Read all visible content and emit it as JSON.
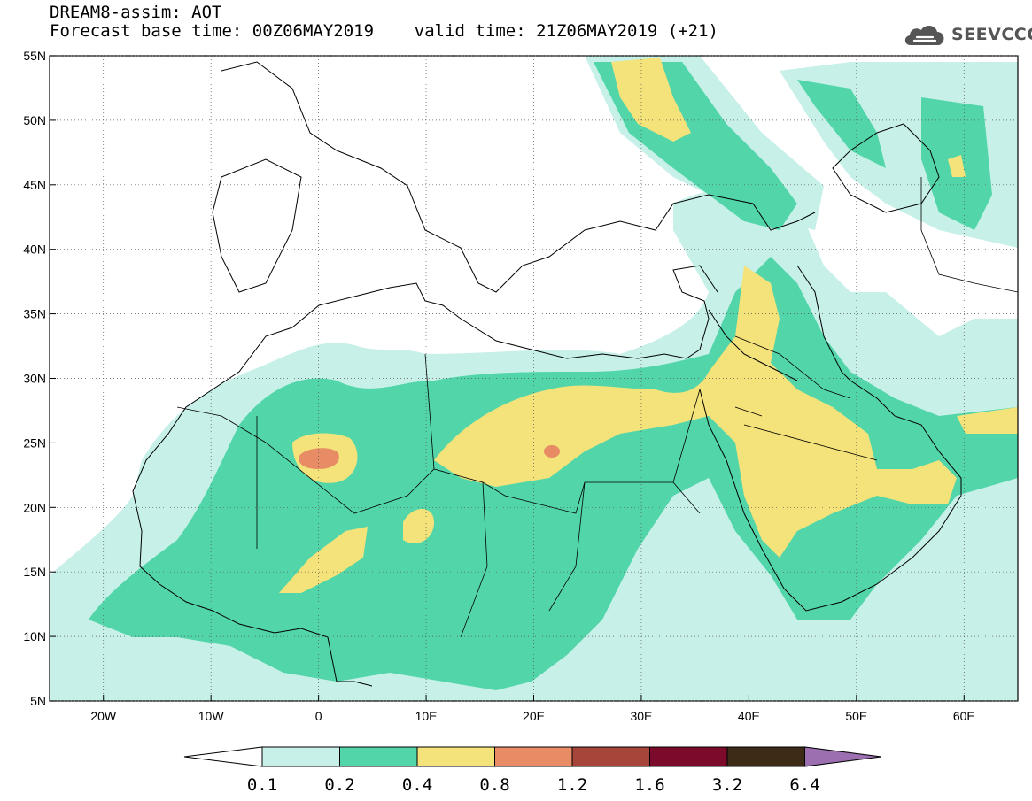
{
  "header": {
    "title": "DREAM8-assim: AOT",
    "subtitle": "Forecast base time: 00Z06MAY2019    valid time: 21Z06MAY2019 (+21)"
  },
  "logo": {
    "text": "SEEVCCC",
    "icon": "cloud-icon"
  },
  "map": {
    "lon_range": [
      -25,
      65
    ],
    "lat_range": [
      5,
      55
    ],
    "lon_ticks": [
      {
        "value": -20,
        "label": "20W"
      },
      {
        "value": -10,
        "label": "10W"
      },
      {
        "value": 0,
        "label": "0"
      },
      {
        "value": 10,
        "label": "10E"
      },
      {
        "value": 20,
        "label": "20E"
      },
      {
        "value": 30,
        "label": "30E"
      },
      {
        "value": 40,
        "label": "40E"
      },
      {
        "value": 50,
        "label": "50E"
      },
      {
        "value": 60,
        "label": "60E"
      }
    ],
    "lat_ticks": [
      {
        "value": 55,
        "label": "55N"
      },
      {
        "value": 50,
        "label": "50N"
      },
      {
        "value": 45,
        "label": "45N"
      },
      {
        "value": 40,
        "label": "40N"
      },
      {
        "value": 35,
        "label": "35N"
      },
      {
        "value": 30,
        "label": "30N"
      },
      {
        "value": 25,
        "label": "25N"
      },
      {
        "value": 20,
        "label": "20N"
      },
      {
        "value": 15,
        "label": "15N"
      },
      {
        "value": 10,
        "label": "10N"
      },
      {
        "value": 5,
        "label": "5N"
      }
    ],
    "gridlines": "dotted every 10 degrees"
  },
  "colorbar": {
    "bins": [
      {
        "from": 0.1,
        "to": 0.2,
        "color": "#c6f0e8"
      },
      {
        "from": 0.2,
        "to": 0.4,
        "color": "#52d6a9"
      },
      {
        "from": 0.4,
        "to": 0.8,
        "color": "#f4e27a"
      },
      {
        "from": 0.8,
        "to": 1.2,
        "color": "#e88c66"
      },
      {
        "from": 1.2,
        "to": 1.6,
        "color": "#a6463b"
      },
      {
        "from": 1.6,
        "to": 3.2,
        "color": "#7c0a2a"
      },
      {
        "from": 3.2,
        "to": 6.4,
        "color": "#3d2a17"
      }
    ],
    "under_color": "#ffffff",
    "over_color": "#9b6fb0",
    "labels": [
      "0.1",
      "0.2",
      "0.4",
      "0.8",
      "1.2",
      "1.6",
      "3.2",
      "6.4"
    ]
  }
}
